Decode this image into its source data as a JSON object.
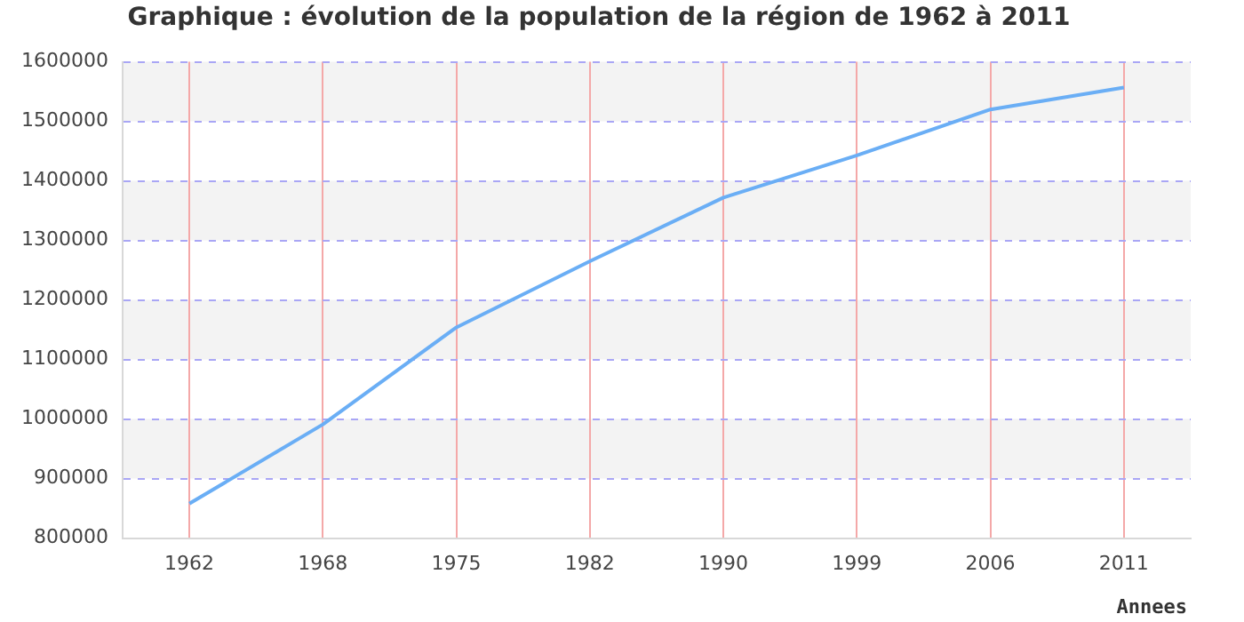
{
  "chart_data": {
    "type": "line",
    "title": "Graphique : évolution de la population de la région de 1962 à 2011",
    "xlabel": "Annees",
    "categories": [
      "1962",
      "1968",
      "1975",
      "1982",
      "1990",
      "1999",
      "2006",
      "2011"
    ],
    "series": [
      {
        "color": "#6aaef5",
        "values": [
          858000,
          991000,
          1154000,
          1265000,
          1372000,
          1443000,
          1520000,
          1557000
        ]
      }
    ],
    "ylim": [
      800000,
      1600000
    ],
    "yticks": [
      800000,
      900000,
      1000000,
      1100000,
      1200000,
      1300000,
      1400000,
      1500000,
      1600000
    ],
    "grid": true,
    "marker": "none",
    "line_style": "solid",
    "legend": false
  }
}
